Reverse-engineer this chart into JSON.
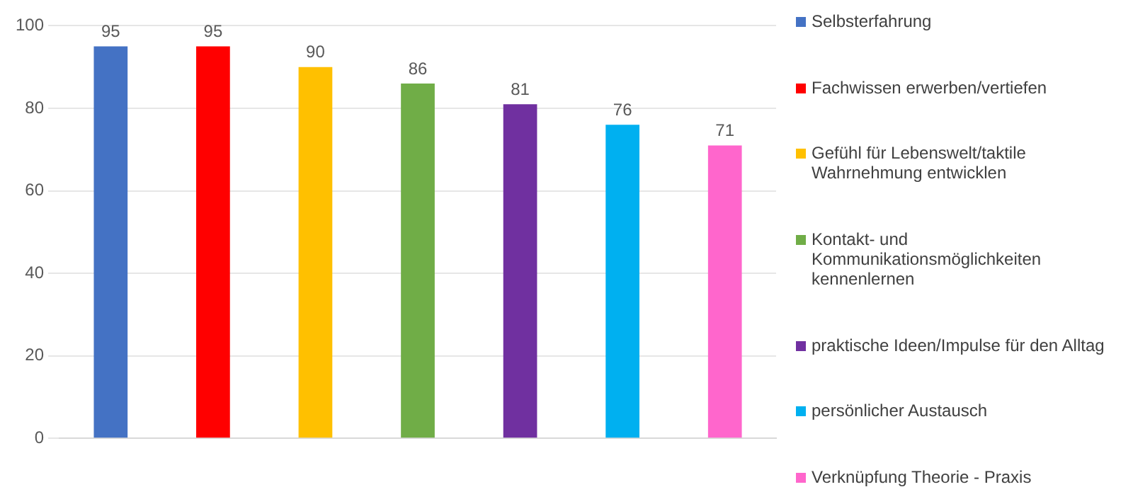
{
  "chart_data": {
    "type": "bar",
    "categories": [
      null
    ],
    "series": [
      {
        "name": "Selbsterfahrung",
        "color": "#4472c4",
        "values": [
          95
        ]
      },
      {
        "name": "Fachwissen erwerben/vertiefen",
        "color": "#ff0000",
        "values": [
          95
        ]
      },
      {
        "name": "Gefühl für Lebenswelt/taktile Wahrnehmung entwicklen",
        "color": "#ffc000",
        "values": [
          90
        ]
      },
      {
        "name": "Kontakt- und Kommunikationsmöglichkeiten kennenlernen",
        "color": "#70ad47",
        "values": [
          86
        ]
      },
      {
        "name": "praktische Ideen/Impulse für den Alltag",
        "color": "#7030a0",
        "values": [
          81
        ]
      },
      {
        "name": "persönlicher Austausch",
        "color": "#00b0f0",
        "values": [
          76
        ]
      },
      {
        "name": "Verknüpfung Theorie - Praxis",
        "color": "#ff66cc",
        "values": [
          71
        ]
      }
    ],
    "ylim": [
      0,
      100
    ],
    "yticks": [
      0,
      20,
      40,
      60,
      80,
      100
    ],
    "grid": "y",
    "legend": "right",
    "data_labels": true
  }
}
